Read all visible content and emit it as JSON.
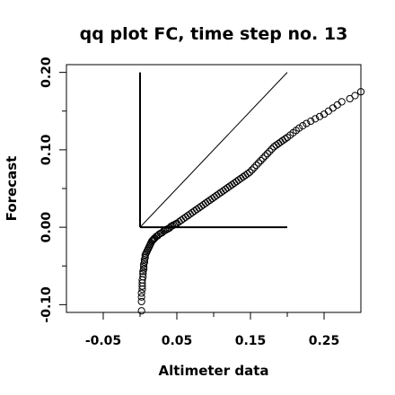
{
  "chart_data": {
    "type": "scatter",
    "title": "qq plot FC, time step no. 13",
    "xlabel": "Altimeter data",
    "ylabel": "Forecast",
    "xlim": [
      -0.1,
      0.3
    ],
    "ylim": [
      -0.11,
      0.21
    ],
    "x_ticks": [
      -0.05,
      0.05,
      0.15,
      0.25
    ],
    "x_tick_labels": [
      "-0.05",
      "0.05",
      "0.15",
      "0.25"
    ],
    "y_ticks": [
      -0.1,
      0.0,
      0.1,
      0.2
    ],
    "y_tick_labels": [
      "-0.10",
      "0.00",
      "0.10",
      "0.20"
    ],
    "grid": false,
    "reference_lines": [
      {
        "kind": "identity",
        "x": [
          0.0,
          0.2
        ],
        "y": [
          0.0,
          0.2
        ]
      },
      {
        "kind": "horizontal",
        "x": [
          0.0,
          0.2
        ],
        "y": [
          0.0,
          0.0
        ]
      },
      {
        "kind": "vertical",
        "x": [
          0.0,
          0.0
        ],
        "y": [
          0.0,
          0.2
        ]
      }
    ],
    "series": [
      {
        "marker": "open-circle",
        "x": [
          0.002,
          0.002,
          0.002,
          0.002,
          0.003,
          0.003,
          0.003,
          0.003,
          0.004,
          0.004,
          0.004,
          0.005,
          0.005,
          0.005,
          0.006,
          0.006,
          0.007,
          0.007,
          0.008,
          0.009,
          0.01,
          0.011,
          0.012,
          0.013,
          0.014,
          0.015,
          0.016,
          0.017,
          0.018,
          0.019,
          0.02,
          0.022,
          0.024,
          0.026,
          0.028,
          0.03,
          0.032,
          0.034,
          0.036,
          0.038,
          0.04,
          0.042,
          0.044,
          0.046,
          0.048,
          0.05,
          0.053,
          0.056,
          0.059,
          0.062,
          0.065,
          0.068,
          0.071,
          0.074,
          0.077,
          0.08,
          0.083,
          0.086,
          0.089,
          0.092,
          0.095,
          0.098,
          0.101,
          0.104,
          0.107,
          0.11,
          0.113,
          0.116,
          0.119,
          0.122,
          0.125,
          0.128,
          0.131,
          0.134,
          0.137,
          0.14,
          0.143,
          0.146,
          0.149,
          0.152,
          0.155,
          0.158,
          0.161,
          0.164,
          0.167,
          0.17,
          0.173,
          0.176,
          0.179,
          0.182,
          0.185,
          0.188,
          0.191,
          0.194,
          0.197,
          0.2,
          0.204,
          0.208,
          0.212,
          0.216,
          0.221,
          0.226,
          0.232,
          0.238,
          0.244,
          0.25,
          0.256,
          0.262,
          0.268,
          0.274,
          0.285,
          0.292,
          0.3
        ],
        "y": [
          -0.108,
          -0.096,
          -0.09,
          -0.085,
          -0.08,
          -0.076,
          -0.072,
          -0.068,
          -0.064,
          -0.06,
          -0.057,
          -0.054,
          -0.051,
          -0.048,
          -0.045,
          -0.042,
          -0.039,
          -0.036,
          -0.034,
          -0.032,
          -0.03,
          -0.028,
          -0.026,
          -0.024,
          -0.022,
          -0.02,
          -0.018,
          -0.017,
          -0.016,
          -0.015,
          -0.014,
          -0.012,
          -0.011,
          -0.009,
          -0.008,
          -0.007,
          -0.005,
          -0.004,
          -0.003,
          -0.002,
          -0.001,
          0.001,
          0.002,
          0.003,
          0.004,
          0.005,
          0.007,
          0.009,
          0.011,
          0.013,
          0.015,
          0.017,
          0.019,
          0.021,
          0.023,
          0.025,
          0.027,
          0.029,
          0.031,
          0.033,
          0.035,
          0.037,
          0.039,
          0.041,
          0.043,
          0.045,
          0.047,
          0.049,
          0.051,
          0.053,
          0.055,
          0.057,
          0.059,
          0.061,
          0.063,
          0.065,
          0.067,
          0.069,
          0.071,
          0.074,
          0.077,
          0.08,
          0.083,
          0.086,
          0.089,
          0.092,
          0.095,
          0.098,
          0.101,
          0.104,
          0.106,
          0.108,
          0.11,
          0.112,
          0.114,
          0.116,
          0.119,
          0.122,
          0.125,
          0.128,
          0.131,
          0.134,
          0.137,
          0.14,
          0.143,
          0.146,
          0.15,
          0.154,
          0.158,
          0.162,
          0.166,
          0.17,
          0.175
        ]
      }
    ]
  }
}
